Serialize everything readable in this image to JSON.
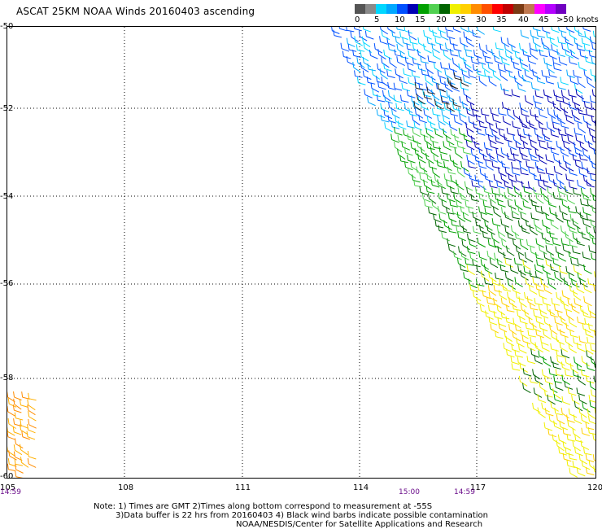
{
  "title": "ASCAT 25KM NOAA Winds 20160403 ascending",
  "legend": {
    "labels": [
      "0",
      "5",
      "10",
      "15",
      "20",
      "25",
      "30",
      "35",
      "40",
      "45",
      ">50 knots"
    ],
    "colors": [
      "#555555",
      "#8a8a8a",
      "#00d7ff",
      "#00a8ff",
      "#0050ff",
      "#0000b4",
      "#00a000",
      "#50d050",
      "#006400",
      "#f0f000",
      "#ffd000",
      "#ff8c00",
      "#ff5000",
      "#ff0000",
      "#c00000",
      "#7a3a14",
      "#c07850",
      "#ff00ff",
      "#b400ff",
      "#7000c0"
    ]
  },
  "map": {
    "lat_labels": [
      "-50",
      "-52",
      "-54",
      "-56",
      "-58",
      "-60"
    ],
    "lon_labels": [
      "105",
      "108",
      "111",
      "114",
      "117",
      "120"
    ],
    "time_labels": [
      "14:59",
      "15:00",
      "14:59"
    ],
    "lon_range": [
      105,
      120
    ],
    "lat_range": [
      -60,
      -50
    ]
  },
  "notes": {
    "line1": "Note: 1) Times are GMT 2)Times along bottom correspond to measurement at -55S",
    "line2": "3)Data buffer is 22 hrs from 20160403 4) Black wind barbs indicate possible contamination",
    "line3": "NOAA/NESDIS/Center for Satellite Applications and Research"
  }
}
